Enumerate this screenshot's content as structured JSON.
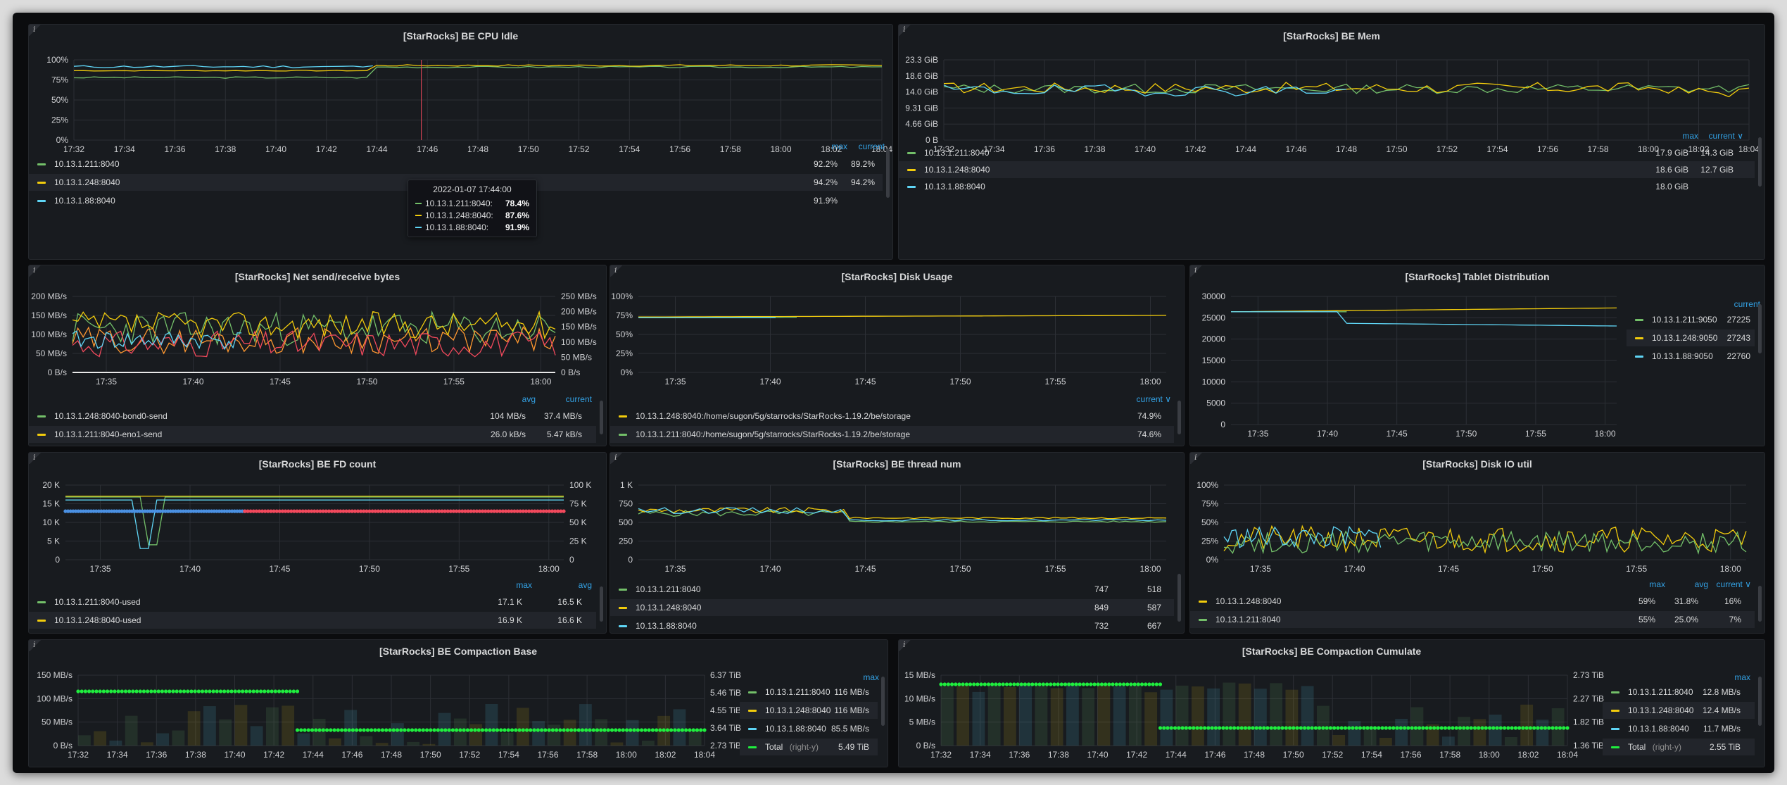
{
  "colors": {
    "green": "#73bf69",
    "yellow": "#f2cc0c",
    "blue": "#5fd5f5",
    "red": "#f2495c",
    "orange": "#ff9830",
    "bright_green": "#1fee3e",
    "lightblue": "#8ab8ff",
    "grid": "#2c2f35"
  },
  "info_label": "i",
  "panels": {
    "cpu": {
      "title": "[StarRocks] BE CPU Idle",
      "yticks": [
        "100%",
        "75%",
        "50%",
        "25%",
        "0%"
      ],
      "xticks": [
        "17:32",
        "17:34",
        "17:36",
        "17:38",
        "17:40",
        "17:42",
        "17:44",
        "17:46",
        "17:48",
        "17:50",
        "17:52",
        "17:54",
        "17:56",
        "17:58",
        "18:00",
        "18:02",
        "18:04"
      ],
      "legend": {
        "headers": [
          "max",
          "current"
        ],
        "rows": [
          {
            "name": "10.13.1.211:8040",
            "color": "green",
            "vals": [
              "92.2%",
              "89.2%"
            ]
          },
          {
            "name": "10.13.1.248:8040",
            "color": "yellow",
            "vals": [
              "94.2%",
              "94.2%"
            ]
          },
          {
            "name": "10.13.1.88:8040",
            "color": "blue",
            "vals": [
              "91.9%",
              ""
            ]
          }
        ]
      },
      "tooltip": {
        "time": "2022-01-07 17:44:00",
        "rows": [
          {
            "name": "10.13.1.211:8040:",
            "value": "78.4%",
            "color": "green"
          },
          {
            "name": "10.13.1.248:8040:",
            "value": "87.6%",
            "color": "yellow"
          },
          {
            "name": "10.13.1.88:8040:",
            "value": "91.9%",
            "color": "blue"
          }
        ]
      }
    },
    "mem": {
      "title": "[StarRocks] BE Mem",
      "yticks": [
        "23.3 GiB",
        "18.6 GiB",
        "14.0 GiB",
        "9.31 GiB",
        "4.66 GiB",
        "0 B"
      ],
      "xticks": [
        "17:32",
        "17:34",
        "17:36",
        "17:38",
        "17:40",
        "17:42",
        "17:44",
        "17:46",
        "17:48",
        "17:50",
        "17:52",
        "17:54",
        "17:56",
        "17:58",
        "18:00",
        "18:02",
        "18:04"
      ],
      "legend": {
        "headers": [
          "max",
          "current ∨"
        ],
        "rows": [
          {
            "name": "10.13.1.211:8040",
            "color": "green",
            "vals": [
              "17.9 GiB",
              "14.3 GiB"
            ]
          },
          {
            "name": "10.13.1.248:8040",
            "color": "yellow",
            "vals": [
              "18.6 GiB",
              "12.7 GiB"
            ]
          },
          {
            "name": "10.13.1.88:8040",
            "color": "blue",
            "vals": [
              "18.0 GiB",
              ""
            ]
          }
        ]
      }
    },
    "net": {
      "title": "[StarRocks] Net send/receive bytes",
      "yticks": [
        "200 MB/s",
        "150 MB/s",
        "100 MB/s",
        "50 MB/s",
        "0 B/s"
      ],
      "yticks_right": [
        "250 MB/s",
        "200 MB/s",
        "150 MB/s",
        "100 MB/s",
        "50 MB/s",
        "0 B/s"
      ],
      "xticks": [
        "17:35",
        "17:40",
        "17:45",
        "17:50",
        "17:55",
        "18:00"
      ],
      "legend": {
        "headers": [
          "avg",
          "current"
        ],
        "rows": [
          {
            "name": "10.13.1.248:8040-bond0-send",
            "color": "green",
            "vals": [
              "104 MB/s",
              "37.4 MB/s"
            ]
          },
          {
            "name": "10.13.1.211:8040-eno1-send",
            "color": "yellow",
            "vals": [
              "26.0 kB/s",
              "5.47 kB/s"
            ]
          }
        ]
      }
    },
    "disk": {
      "title": "[StarRocks] Disk Usage",
      "yticks": [
        "100%",
        "75%",
        "50%",
        "25%",
        "0%"
      ],
      "xticks": [
        "17:35",
        "17:40",
        "17:45",
        "17:50",
        "17:55",
        "18:00"
      ],
      "legend": {
        "headers": [
          "current ∨"
        ],
        "rows": [
          {
            "name": "10.13.1.248:8040:/home/sugon/5g/starrocks/StarRocks-1.19.2/be/storage",
            "color": "yellow",
            "vals": [
              "74.9%"
            ]
          },
          {
            "name": "10.13.1.211:8040:/home/sugon/5g/starrocks/StarRocks-1.19.2/be/storage",
            "color": "green",
            "vals": [
              "74.6%"
            ]
          }
        ]
      }
    },
    "tablet": {
      "title": "[StarRocks] Tablet Distribution",
      "yticks": [
        "30000",
        "25000",
        "20000",
        "15000",
        "10000",
        "5000",
        "0"
      ],
      "xticks": [
        "17:35",
        "17:40",
        "17:45",
        "17:50",
        "17:55",
        "18:00"
      ],
      "legend": {
        "headers": [
          "current"
        ],
        "rows": [
          {
            "name": "10.13.1.211:9050",
            "color": "green",
            "vals": [
              "27225"
            ]
          },
          {
            "name": "10.13.1.248:9050",
            "color": "yellow",
            "vals": [
              "27243"
            ]
          },
          {
            "name": "10.13.1.88:9050",
            "color": "blue",
            "vals": [
              "22760"
            ]
          }
        ]
      }
    },
    "fd": {
      "title": "[StarRocks] BE FD count",
      "yticks": [
        "20 K",
        "15 K",
        "10 K",
        "5 K",
        "0"
      ],
      "yticks_right": [
        "100 K",
        "75 K",
        "50 K",
        "25 K",
        "0"
      ],
      "xticks": [
        "17:35",
        "17:40",
        "17:45",
        "17:50",
        "17:55",
        "18:00"
      ],
      "legend": {
        "headers": [
          "max",
          "avg"
        ],
        "rows": [
          {
            "name": "10.13.1.211:8040-used",
            "color": "green",
            "vals": [
              "17.1 K",
              "16.5 K"
            ]
          },
          {
            "name": "10.13.1.248:8040-used",
            "color": "yellow",
            "vals": [
              "16.9 K",
              "16.6 K"
            ]
          }
        ]
      }
    },
    "thread": {
      "title": "[StarRocks] BE thread num",
      "yticks": [
        "1 K",
        "750",
        "500",
        "250",
        "0"
      ],
      "xticks": [
        "17:35",
        "17:40",
        "17:45",
        "17:50",
        "17:55",
        "18:00"
      ],
      "legend": {
        "headers": [],
        "rows": [
          {
            "name": "10.13.1.211:8040",
            "color": "green",
            "vals": [
              "747",
              "518"
            ]
          },
          {
            "name": "10.13.1.248:8040",
            "color": "yellow",
            "vals": [
              "849",
              "587"
            ]
          },
          {
            "name": "10.13.1.88:8040",
            "color": "blue",
            "vals": [
              "732",
              "667"
            ]
          }
        ]
      }
    },
    "diskio": {
      "title": "[StarRocks] Disk IO util",
      "yticks": [
        "100%",
        "75%",
        "50%",
        "25%",
        "0%"
      ],
      "xticks": [
        "17:35",
        "17:40",
        "17:45",
        "17:50",
        "17:55",
        "18:00"
      ],
      "legend": {
        "headers": [
          "max",
          "avg",
          "current ∨"
        ],
        "rows": [
          {
            "name": "10.13.1.248:8040",
            "color": "yellow",
            "vals": [
              "59%",
              "31.8%",
              "16%"
            ]
          },
          {
            "name": "10.13.1.211:8040",
            "color": "green",
            "vals": [
              "55%",
              "25.0%",
              "7%"
            ]
          }
        ]
      }
    },
    "cbase": {
      "title": "[StarRocks] BE Compaction Base",
      "yticks": [
        "150 MB/s",
        "100 MB/s",
        "50 MB/s",
        "0 B/s"
      ],
      "yticks_right": [
        "6.37 TiB",
        "5.46 TiB",
        "4.55 TiB",
        "3.64 TiB",
        "2.73 TiB"
      ],
      "xticks": [
        "17:32",
        "17:34",
        "17:36",
        "17:38",
        "17:40",
        "17:42",
        "17:44",
        "17:46",
        "17:48",
        "17:50",
        "17:52",
        "17:54",
        "17:56",
        "17:58",
        "18:00",
        "18:02",
        "18:04"
      ],
      "legend": {
        "headers": [
          "max"
        ],
        "rows": [
          {
            "name": "10.13.1.211:8040",
            "color": "green",
            "vals": [
              "116 MB/s"
            ]
          },
          {
            "name": "10.13.1.248:8040",
            "color": "yellow",
            "vals": [
              "116 MB/s"
            ]
          },
          {
            "name": "10.13.1.88:8040",
            "color": "blue",
            "vals": [
              "85.5 MB/s"
            ]
          },
          {
            "name": "Total",
            "suffix": "(right-y)",
            "color": "bright_green",
            "vals": [
              "5.49 TiB"
            ]
          }
        ]
      }
    },
    "ccum": {
      "title": "[StarRocks] BE Compaction Cumulate",
      "yticks": [
        "15 MB/s",
        "10 MB/s",
        "5 MB/s",
        "0 B/s"
      ],
      "yticks_right": [
        "2.73 TiB",
        "2.27 TiB",
        "1.82 TiB",
        "1.36 TiB"
      ],
      "xticks": [
        "17:32",
        "17:34",
        "17:36",
        "17:38",
        "17:40",
        "17:42",
        "17:44",
        "17:46",
        "17:48",
        "17:50",
        "17:52",
        "17:54",
        "17:56",
        "17:58",
        "18:00",
        "18:02",
        "18:04"
      ],
      "legend": {
        "headers": [
          "max"
        ],
        "rows": [
          {
            "name": "10.13.1.211:8040",
            "color": "green",
            "vals": [
              "12.8 MB/s"
            ]
          },
          {
            "name": "10.13.1.248:8040",
            "color": "yellow",
            "vals": [
              "12.4 MB/s"
            ]
          },
          {
            "name": "10.13.1.88:8040",
            "color": "blue",
            "vals": [
              "11.7 MB/s"
            ]
          },
          {
            "name": "Total",
            "suffix": "(right-y)",
            "color": "bright_green",
            "vals": [
              "2.55 TiB"
            ]
          }
        ]
      }
    }
  }
}
